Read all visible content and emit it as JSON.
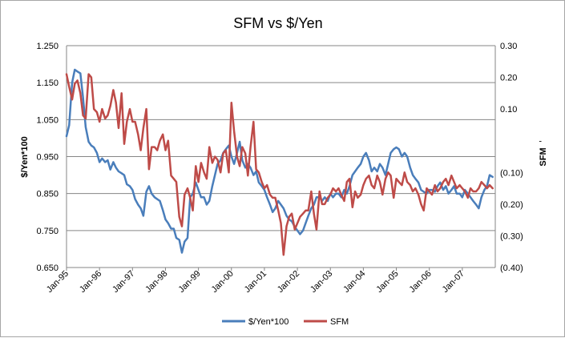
{
  "chart_data": {
    "type": "line",
    "title": "SFM vs $/Yen",
    "ylabel": "$/Yen*100",
    "y2label": "SFM",
    "ylim": [
      0.65,
      1.25
    ],
    "y2lim": [
      -0.4,
      0.3
    ],
    "yticks": [
      "1.250",
      "1.150",
      "1.050",
      "0.950",
      "0.850",
      "0.750",
      "0.650"
    ],
    "y2ticks": [
      "0.30",
      "0.20",
      "0.10",
      "-",
      "(0.10)",
      "(0.20)",
      "(0.30)",
      "(0.40)"
    ],
    "xticks": [
      "Jan-95",
      "Jan-96",
      "Jan-97",
      "Jan-98",
      "Jan-99",
      "Jan-00",
      "Jan-01",
      "Jan-02",
      "Jan-03",
      "Jan-04",
      "Jan-05",
      "Jan-06",
      "Jan-07"
    ],
    "grid": true,
    "legend_position": "bottom",
    "colors": {
      "yen": "#4a7ebb",
      "sfm": "#be4b48"
    },
    "series": [
      {
        "name": "$/Yen*100",
        "axis": "left",
        "x": [
          1995.0,
          1995.08,
          1995.17,
          1995.25,
          1995.33,
          1995.42,
          1995.5,
          1995.58,
          1995.67,
          1995.75,
          1995.83,
          1995.92,
          1996.0,
          1996.08,
          1996.17,
          1996.25,
          1996.33,
          1996.42,
          1996.5,
          1996.58,
          1996.67,
          1996.75,
          1996.83,
          1996.92,
          1997.0,
          1997.08,
          1997.17,
          1997.25,
          1997.33,
          1997.42,
          1997.5,
          1997.58,
          1997.67,
          1997.75,
          1997.83,
          1997.92,
          1998.0,
          1998.08,
          1998.17,
          1998.25,
          1998.33,
          1998.42,
          1998.5,
          1998.58,
          1998.67,
          1998.75,
          1998.83,
          1998.92,
          1999.0,
          1999.08,
          1999.17,
          1999.25,
          1999.33,
          1999.42,
          1999.5,
          1999.58,
          1999.67,
          1999.75,
          1999.83,
          1999.92,
          2000.0,
          2000.08,
          2000.17,
          2000.25,
          2000.33,
          2000.42,
          2000.5,
          2000.58,
          2000.67,
          2000.75,
          2000.83,
          2000.92,
          2001.0,
          2001.08,
          2001.17,
          2001.25,
          2001.33,
          2001.42,
          2001.5,
          2001.58,
          2001.67,
          2001.75,
          2001.83,
          2001.92,
          2002.0,
          2002.08,
          2002.17,
          2002.25,
          2002.33,
          2002.42,
          2002.5,
          2002.58,
          2002.67,
          2002.75,
          2002.83,
          2002.92,
          2003.0,
          2003.08,
          2003.17,
          2003.25,
          2003.33,
          2003.42,
          2003.5,
          2003.58,
          2003.67,
          2003.75,
          2003.83,
          2003.92,
          2004.0,
          2004.08,
          2004.17,
          2004.25,
          2004.33,
          2004.42,
          2004.5,
          2004.58,
          2004.67,
          2004.75,
          2004.83,
          2004.92,
          2005.0,
          2005.08,
          2005.17,
          2005.25,
          2005.33,
          2005.42,
          2005.5,
          2005.58,
          2005.67,
          2005.75,
          2005.83,
          2005.92,
          2006.0,
          2006.08,
          2006.17,
          2006.25,
          2006.33,
          2006.42,
          2006.5,
          2006.58,
          2006.67,
          2006.75,
          2006.83,
          2006.92,
          2007.0,
          2007.08,
          2007.17,
          2007.25,
          2007.33,
          2007.42,
          2007.5,
          2007.58,
          2007.67,
          2007.75,
          2007.83,
          2007.92
        ],
        "values": [
          1.005,
          1.035,
          1.15,
          1.185,
          1.18,
          1.175,
          1.11,
          1.03,
          0.99,
          0.98,
          0.975,
          0.96,
          0.935,
          0.945,
          0.935,
          0.94,
          0.915,
          0.935,
          0.92,
          0.91,
          0.905,
          0.9,
          0.875,
          0.87,
          0.86,
          0.835,
          0.82,
          0.81,
          0.79,
          0.855,
          0.87,
          0.85,
          0.84,
          0.835,
          0.83,
          0.805,
          0.78,
          0.77,
          0.755,
          0.755,
          0.73,
          0.725,
          0.69,
          0.72,
          0.73,
          0.84,
          0.85,
          0.88,
          0.86,
          0.84,
          0.84,
          0.82,
          0.83,
          0.87,
          0.9,
          0.93,
          0.94,
          0.96,
          0.97,
          0.98,
          0.95,
          0.93,
          0.96,
          0.99,
          0.94,
          0.92,
          0.93,
          0.92,
          0.9,
          0.91,
          0.88,
          0.87,
          0.86,
          0.84,
          0.82,
          0.8,
          0.81,
          0.83,
          0.82,
          0.81,
          0.79,
          0.78,
          0.775,
          0.76,
          0.75,
          0.74,
          0.75,
          0.77,
          0.79,
          0.81,
          0.82,
          0.84,
          0.84,
          0.83,
          0.84,
          0.83,
          0.85,
          0.84,
          0.85,
          0.85,
          0.84,
          0.86,
          0.85,
          0.87,
          0.9,
          0.91,
          0.92,
          0.93,
          0.95,
          0.96,
          0.94,
          0.91,
          0.92,
          0.91,
          0.93,
          0.92,
          0.9,
          0.93,
          0.96,
          0.97,
          0.975,
          0.97,
          0.95,
          0.96,
          0.95,
          0.92,
          0.9,
          0.89,
          0.88,
          0.86,
          0.855,
          0.85,
          0.86,
          0.86,
          0.855,
          0.87,
          0.88,
          0.86,
          0.87,
          0.85,
          0.86,
          0.87,
          0.85,
          0.85,
          0.84,
          0.86,
          0.85,
          0.84,
          0.83,
          0.82,
          0.81,
          0.84,
          0.86,
          0.87,
          0.9,
          0.895
        ]
      },
      {
        "name": "SFM",
        "axis": "right",
        "x": [
          1995.0,
          1995.08,
          1995.17,
          1995.25,
          1995.33,
          1995.42,
          1995.5,
          1995.58,
          1995.67,
          1995.75,
          1995.83,
          1995.92,
          1996.0,
          1996.08,
          1996.17,
          1996.25,
          1996.33,
          1996.42,
          1996.5,
          1996.58,
          1996.67,
          1996.75,
          1996.83,
          1996.92,
          1997.0,
          1997.08,
          1997.17,
          1997.25,
          1997.33,
          1997.42,
          1997.5,
          1997.58,
          1997.67,
          1997.75,
          1997.83,
          1997.92,
          1998.0,
          1998.08,
          1998.17,
          1998.25,
          1998.33,
          1998.42,
          1998.5,
          1998.58,
          1998.67,
          1998.75,
          1998.83,
          1998.92,
          1999.0,
          1999.08,
          1999.17,
          1999.25,
          1999.33,
          1999.42,
          1999.5,
          1999.58,
          1999.67,
          1999.75,
          1999.83,
          1999.92,
          2000.0,
          2000.08,
          2000.17,
          2000.25,
          2000.33,
          2000.42,
          2000.5,
          2000.58,
          2000.67,
          2000.75,
          2000.83,
          2000.92,
          2001.0,
          2001.08,
          2001.17,
          2001.25,
          2001.33,
          2001.42,
          2001.5,
          2001.58,
          2001.67,
          2001.75,
          2001.83,
          2001.92,
          2002.0,
          2002.08,
          2002.17,
          2002.25,
          2002.33,
          2002.42,
          2002.5,
          2002.58,
          2002.67,
          2002.75,
          2002.83,
          2002.92,
          2003.0,
          2003.08,
          2003.17,
          2003.25,
          2003.33,
          2003.42,
          2003.5,
          2003.58,
          2003.67,
          2003.75,
          2003.83,
          2003.92,
          2004.0,
          2004.08,
          2004.17,
          2004.25,
          2004.33,
          2004.42,
          2004.5,
          2004.58,
          2004.67,
          2004.75,
          2004.83,
          2004.92,
          2005.0,
          2005.08,
          2005.17,
          2005.25,
          2005.33,
          2005.42,
          2005.5,
          2005.58,
          2005.67,
          2005.75,
          2005.83,
          2005.92,
          2006.0,
          2006.08,
          2006.17,
          2006.25,
          2006.33,
          2006.42,
          2006.5,
          2006.58,
          2006.67,
          2006.75,
          2006.83,
          2006.92,
          2007.0,
          2007.08,
          2007.17,
          2007.25,
          2007.33,
          2007.42,
          2007.5,
          2007.58,
          2007.67,
          2007.75,
          2007.83,
          2007.92
        ],
        "values": [
          0.21,
          0.17,
          0.13,
          0.18,
          0.19,
          0.15,
          0.08,
          0.07,
          0.21,
          0.2,
          0.1,
          0.09,
          0.06,
          0.1,
          0.07,
          0.08,
          0.11,
          0.16,
          0.12,
          0.04,
          0.15,
          -0.01,
          0.06,
          0.1,
          0.06,
          0.06,
          0.02,
          -0.03,
          0.04,
          0.1,
          -0.09,
          -0.02,
          -0.02,
          -0.03,
          0.0,
          0.02,
          -0.03,
          0.0,
          -0.11,
          -0.12,
          -0.13,
          -0.24,
          -0.27,
          -0.17,
          -0.15,
          -0.18,
          -0.22,
          -0.08,
          -0.13,
          -0.07,
          -0.1,
          -0.12,
          -0.02,
          -0.07,
          -0.05,
          -0.06,
          -0.1,
          -0.04,
          -0.03,
          -0.1,
          0.12,
          0.03,
          -0.05,
          -0.08,
          -0.02,
          -0.04,
          -0.11,
          -0.02,
          0.06,
          -0.09,
          -0.1,
          -0.13,
          -0.15,
          -0.14,
          -0.17,
          -0.18,
          -0.18,
          -0.22,
          -0.26,
          -0.36,
          -0.27,
          -0.24,
          -0.23,
          -0.28,
          -0.26,
          -0.24,
          -0.23,
          -0.22,
          -0.22,
          -0.16,
          -0.23,
          -0.28,
          -0.16,
          -0.2,
          -0.2,
          -0.18,
          -0.17,
          -0.15,
          -0.16,
          -0.15,
          -0.17,
          -0.19,
          -0.13,
          -0.12,
          -0.21,
          -0.16,
          -0.18,
          -0.17,
          -0.14,
          -0.12,
          -0.11,
          -0.14,
          -0.15,
          -0.11,
          -0.13,
          -0.17,
          -0.12,
          -0.1,
          -0.11,
          -0.18,
          -0.12,
          -0.13,
          -0.14,
          -0.1,
          -0.13,
          -0.14,
          -0.16,
          -0.15,
          -0.17,
          -0.2,
          -0.22,
          -0.15,
          -0.16,
          -0.17,
          -0.14,
          -0.16,
          -0.15,
          -0.13,
          -0.12,
          -0.14,
          -0.11,
          -0.13,
          -0.15,
          -0.14,
          -0.15,
          -0.16,
          -0.18,
          -0.15,
          -0.16,
          -0.16,
          -0.15,
          -0.13,
          -0.14,
          -0.15,
          -0.14,
          -0.15
        ]
      }
    ]
  }
}
